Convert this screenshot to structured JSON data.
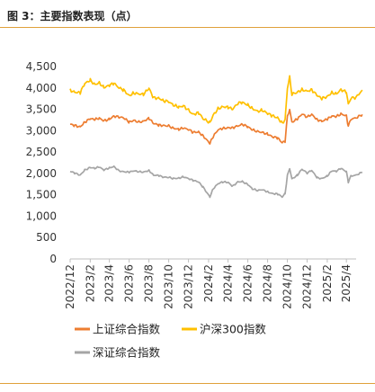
{
  "header": {
    "title": "图 3：主要指数表现（点）"
  },
  "colors": {
    "rule": "#e0a13a"
  },
  "chart_data": {
    "type": "line",
    "y_ticks": [
      "0",
      "500",
      "1,000",
      "1,500",
      "2,000",
      "2,500",
      "3,000",
      "3,500",
      "4,000",
      "4,500"
    ],
    "ylim": [
      0,
      4500
    ],
    "x_ticks": [
      "2022/12",
      "2023/2",
      "2023/4",
      "2023/6",
      "2023/8",
      "2023/10",
      "2023/12",
      "2024/2",
      "2024/4",
      "2024/6",
      "2024/8",
      "2024/10",
      "2024/12",
      "2025/2",
      "2025/4"
    ],
    "xlim": [
      "2022/12",
      "2025/5"
    ],
    "legend_position": "bottom",
    "series": [
      {
        "name": "上证综合指数",
        "color": "#ed7d31",
        "points": [
          [
            "2022-12-01",
            3150
          ],
          [
            "2022-12-15",
            3120
          ],
          [
            "2023-01-01",
            3090
          ],
          [
            "2023-01-15",
            3200
          ],
          [
            "2023-02-01",
            3280
          ],
          [
            "2023-02-15",
            3260
          ],
          [
            "2023-03-01",
            3290
          ],
          [
            "2023-03-15",
            3230
          ],
          [
            "2023-04-01",
            3270
          ],
          [
            "2023-04-15",
            3340
          ],
          [
            "2023-05-01",
            3320
          ],
          [
            "2023-05-15",
            3300
          ],
          [
            "2023-06-01",
            3200
          ],
          [
            "2023-06-15",
            3240
          ],
          [
            "2023-07-01",
            3200
          ],
          [
            "2023-07-15",
            3220
          ],
          [
            "2023-08-01",
            3290
          ],
          [
            "2023-08-15",
            3170
          ],
          [
            "2023-09-01",
            3130
          ],
          [
            "2023-09-15",
            3120
          ],
          [
            "2023-10-01",
            3110
          ],
          [
            "2023-10-15",
            3060
          ],
          [
            "2023-11-01",
            3030
          ],
          [
            "2023-11-15",
            3060
          ],
          [
            "2023-12-01",
            3030
          ],
          [
            "2023-12-15",
            2960
          ],
          [
            "2024-01-01",
            2970
          ],
          [
            "2024-01-15",
            2880
          ],
          [
            "2024-02-05",
            2700
          ],
          [
            "2024-02-15",
            2860
          ],
          [
            "2024-03-01",
            3020
          ],
          [
            "2024-03-15",
            3050
          ],
          [
            "2024-04-01",
            3070
          ],
          [
            "2024-04-15",
            3070
          ],
          [
            "2024-05-01",
            3110
          ],
          [
            "2024-05-15",
            3150
          ],
          [
            "2024-06-01",
            3090
          ],
          [
            "2024-06-15",
            3020
          ],
          [
            "2024-07-01",
            2980
          ],
          [
            "2024-07-15",
            2960
          ],
          [
            "2024-08-01",
            2920
          ],
          [
            "2024-08-15",
            2860
          ],
          [
            "2024-09-01",
            2830
          ],
          [
            "2024-09-15",
            2720
          ],
          [
            "2024-09-24",
            2750
          ],
          [
            "2024-10-01",
            3340
          ],
          [
            "2024-10-08",
            3490
          ],
          [
            "2024-10-15",
            3200
          ],
          [
            "2024-11-01",
            3270
          ],
          [
            "2024-11-15",
            3390
          ],
          [
            "2024-12-01",
            3320
          ],
          [
            "2024-12-15",
            3380
          ],
          [
            "2025-01-01",
            3260
          ],
          [
            "2025-01-15",
            3220
          ],
          [
            "2025-02-01",
            3270
          ],
          [
            "2025-02-15",
            3340
          ],
          [
            "2025-03-01",
            3330
          ],
          [
            "2025-03-15",
            3390
          ],
          [
            "2025-04-01",
            3350
          ],
          [
            "2025-04-07",
            3100
          ],
          [
            "2025-04-15",
            3270
          ],
          [
            "2025-05-01",
            3300
          ],
          [
            "2025-05-20",
            3380
          ]
        ]
      },
      {
        "name": "沪深300指数",
        "color": "#ffc000",
        "points": [
          [
            "2022-12-01",
            3950
          ],
          [
            "2022-12-15",
            3900
          ],
          [
            "2023-01-01",
            3890
          ],
          [
            "2023-01-15",
            4100
          ],
          [
            "2023-02-01",
            4180
          ],
          [
            "2023-02-15",
            4080
          ],
          [
            "2023-03-01",
            4120
          ],
          [
            "2023-03-15",
            4010
          ],
          [
            "2023-04-01",
            4060
          ],
          [
            "2023-04-15",
            4110
          ],
          [
            "2023-05-01",
            4000
          ],
          [
            "2023-05-15",
            3950
          ],
          [
            "2023-06-01",
            3820
          ],
          [
            "2023-06-15",
            3880
          ],
          [
            "2023-07-01",
            3860
          ],
          [
            "2023-07-15",
            3850
          ],
          [
            "2023-08-01",
            3990
          ],
          [
            "2023-08-15",
            3770
          ],
          [
            "2023-09-01",
            3760
          ],
          [
            "2023-09-15",
            3700
          ],
          [
            "2023-10-01",
            3680
          ],
          [
            "2023-10-15",
            3600
          ],
          [
            "2023-11-01",
            3550
          ],
          [
            "2023-11-15",
            3580
          ],
          [
            "2023-12-01",
            3480
          ],
          [
            "2023-12-15",
            3380
          ],
          [
            "2024-01-01",
            3420
          ],
          [
            "2024-01-15",
            3280
          ],
          [
            "2024-02-05",
            3190
          ],
          [
            "2024-02-15",
            3360
          ],
          [
            "2024-03-01",
            3510
          ],
          [
            "2024-03-15",
            3560
          ],
          [
            "2024-04-01",
            3550
          ],
          [
            "2024-04-15",
            3500
          ],
          [
            "2024-05-01",
            3640
          ],
          [
            "2024-05-15",
            3660
          ],
          [
            "2024-06-01",
            3600
          ],
          [
            "2024-06-15",
            3520
          ],
          [
            "2024-07-01",
            3450
          ],
          [
            "2024-07-15",
            3480
          ],
          [
            "2024-08-01",
            3400
          ],
          [
            "2024-08-15",
            3350
          ],
          [
            "2024-09-01",
            3300
          ],
          [
            "2024-09-15",
            3180
          ],
          [
            "2024-09-24",
            3250
          ],
          [
            "2024-10-01",
            4000
          ],
          [
            "2024-10-08",
            4250
          ],
          [
            "2024-10-15",
            3850
          ],
          [
            "2024-11-01",
            3900
          ],
          [
            "2024-11-15",
            3960
          ],
          [
            "2024-12-01",
            3920
          ],
          [
            "2024-12-15",
            3960
          ],
          [
            "2025-01-01",
            3820
          ],
          [
            "2025-01-15",
            3750
          ],
          [
            "2025-02-01",
            3800
          ],
          [
            "2025-02-15",
            3890
          ],
          [
            "2025-03-01",
            3860
          ],
          [
            "2025-03-15",
            3960
          ],
          [
            "2025-04-01",
            3900
          ],
          [
            "2025-04-07",
            3620
          ],
          [
            "2025-04-15",
            3760
          ],
          [
            "2025-05-01",
            3780
          ],
          [
            "2025-05-20",
            3950
          ]
        ]
      },
      {
        "name": "深证综合指数",
        "color": "#a5a5a5",
        "points": [
          [
            "2022-12-01",
            2050
          ],
          [
            "2022-12-15",
            2010
          ],
          [
            "2023-01-01",
            1960
          ],
          [
            "2023-01-15",
            2080
          ],
          [
            "2023-02-01",
            2140
          ],
          [
            "2023-02-15",
            2120
          ],
          [
            "2023-03-01",
            2150
          ],
          [
            "2023-03-15",
            2080
          ],
          [
            "2023-04-01",
            2130
          ],
          [
            "2023-04-15",
            2160
          ],
          [
            "2023-05-01",
            2060
          ],
          [
            "2023-05-15",
            2040
          ],
          [
            "2023-06-01",
            2030
          ],
          [
            "2023-06-15",
            2060
          ],
          [
            "2023-07-01",
            2040
          ],
          [
            "2023-07-15",
            2030
          ],
          [
            "2023-08-01",
            2070
          ],
          [
            "2023-08-15",
            1960
          ],
          [
            "2023-09-01",
            1950
          ],
          [
            "2023-09-15",
            1910
          ],
          [
            "2023-10-01",
            1910
          ],
          [
            "2023-10-15",
            1880
          ],
          [
            "2023-11-01",
            1890
          ],
          [
            "2023-11-15",
            1920
          ],
          [
            "2023-12-01",
            1880
          ],
          [
            "2023-12-15",
            1840
          ],
          [
            "2024-01-01",
            1800
          ],
          [
            "2024-01-15",
            1680
          ],
          [
            "2024-02-05",
            1450
          ],
          [
            "2024-02-15",
            1640
          ],
          [
            "2024-03-01",
            1760
          ],
          [
            "2024-03-15",
            1800
          ],
          [
            "2024-04-01",
            1790
          ],
          [
            "2024-04-15",
            1700
          ],
          [
            "2024-05-01",
            1800
          ],
          [
            "2024-05-15",
            1810
          ],
          [
            "2024-06-01",
            1740
          ],
          [
            "2024-06-15",
            1640
          ],
          [
            "2024-07-01",
            1600
          ],
          [
            "2024-07-15",
            1620
          ],
          [
            "2024-08-01",
            1570
          ],
          [
            "2024-08-15",
            1530
          ],
          [
            "2024-09-01",
            1520
          ],
          [
            "2024-09-15",
            1450
          ],
          [
            "2024-09-24",
            1530
          ],
          [
            "2024-10-01",
            1950
          ],
          [
            "2024-10-08",
            2120
          ],
          [
            "2024-10-15",
            1870
          ],
          [
            "2024-11-01",
            1960
          ],
          [
            "2024-11-15",
            2100
          ],
          [
            "2024-12-01",
            2010
          ],
          [
            "2024-12-15",
            2070
          ],
          [
            "2025-01-01",
            1900
          ],
          [
            "2025-01-15",
            1880
          ],
          [
            "2025-02-01",
            1940
          ],
          [
            "2025-02-15",
            2060
          ],
          [
            "2025-03-01",
            2050
          ],
          [
            "2025-03-15",
            2120
          ],
          [
            "2025-04-01",
            2040
          ],
          [
            "2025-04-07",
            1800
          ],
          [
            "2025-04-15",
            1940
          ],
          [
            "2025-05-01",
            1960
          ],
          [
            "2025-05-20",
            2030
          ]
        ]
      }
    ]
  }
}
